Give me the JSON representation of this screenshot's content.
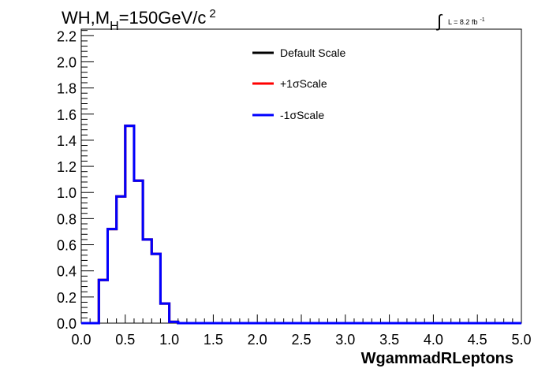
{
  "header": {
    "title_prefix": "WH,M",
    "title_sub": "H",
    "title_suffix": "=150GeV/c",
    "title_sup": "2",
    "lumi_symbol": "∫",
    "lumi_text": "L = 8.2 fb",
    "lumi_sup": "-1"
  },
  "chart_data": {
    "type": "line",
    "style": "step-histogram",
    "xlabel": "WgammadRLeptons",
    "ylabel": "",
    "xlim": [
      0.0,
      5.0
    ],
    "ylim": [
      0.0,
      2.25
    ],
    "x_ticks": [
      "0.0",
      "0.5",
      "1.0",
      "1.5",
      "2.0",
      "2.5",
      "3.0",
      "3.5",
      "4.0",
      "4.5",
      "5.0"
    ],
    "y_ticks": [
      "0.0",
      "0.2",
      "0.4",
      "0.6",
      "0.8",
      "1.0",
      "1.2",
      "1.4",
      "1.6",
      "1.8",
      "2.0",
      "2.2"
    ],
    "bin_edges": [
      0.0,
      0.1,
      0.2,
      0.3,
      0.4,
      0.5,
      0.6,
      0.7,
      0.8,
      0.9,
      1.0,
      1.1,
      1.2,
      1.3,
      1.4,
      1.5,
      1.6,
      1.7,
      1.8,
      1.9,
      2.0,
      2.1,
      2.2,
      2.3,
      2.4,
      2.5,
      2.6,
      2.7,
      2.8,
      2.9,
      3.0,
      3.1,
      3.2,
      3.3,
      3.4,
      3.5,
      3.6,
      3.7,
      3.8,
      3.9,
      4.0,
      4.1,
      4.2,
      4.3,
      4.4,
      4.5,
      4.6,
      4.7,
      4.8,
      4.9,
      5.0
    ],
    "series": [
      {
        "name": "Default Scale",
        "color": "#000000",
        "values": [
          0,
          0,
          0.33,
          0.72,
          0.97,
          1.51,
          1.09,
          0.64,
          0.53,
          0.15,
          0.01,
          0,
          0,
          0,
          0,
          0,
          0,
          0,
          0,
          0,
          0,
          0,
          0,
          0,
          0,
          0,
          0,
          0,
          0,
          0,
          0,
          0,
          0,
          0,
          0,
          0,
          0,
          0,
          0,
          0,
          0,
          0,
          0,
          0,
          0,
          0,
          0,
          0,
          0,
          0
        ]
      },
      {
        "name": "+1σScale",
        "color": "#ff0000",
        "values": [
          0,
          0,
          0.33,
          0.72,
          0.97,
          1.51,
          1.09,
          0.64,
          0.53,
          0.15,
          0.01,
          0,
          0,
          0,
          0,
          0,
          0,
          0,
          0,
          0,
          0,
          0,
          0,
          0,
          0,
          0,
          0,
          0,
          0,
          0,
          0,
          0,
          0,
          0,
          0,
          0,
          0,
          0,
          0,
          0,
          0,
          0,
          0,
          0,
          0,
          0,
          0,
          0,
          0,
          0
        ]
      },
      {
        "name": "-1σScale",
        "color": "#0000ff",
        "values": [
          0,
          0,
          0.33,
          0.72,
          0.97,
          1.51,
          1.09,
          0.64,
          0.53,
          0.15,
          0.01,
          0,
          0,
          0,
          0,
          0,
          0,
          0,
          0,
          0,
          0,
          0,
          0,
          0,
          0,
          0,
          0,
          0,
          0,
          0,
          0,
          0,
          0,
          0,
          0,
          0,
          0,
          0,
          0,
          0,
          0,
          0,
          0,
          0,
          0,
          0,
          0,
          0,
          0,
          0
        ]
      }
    ],
    "legend_placement": "top-center",
    "grid": false
  }
}
